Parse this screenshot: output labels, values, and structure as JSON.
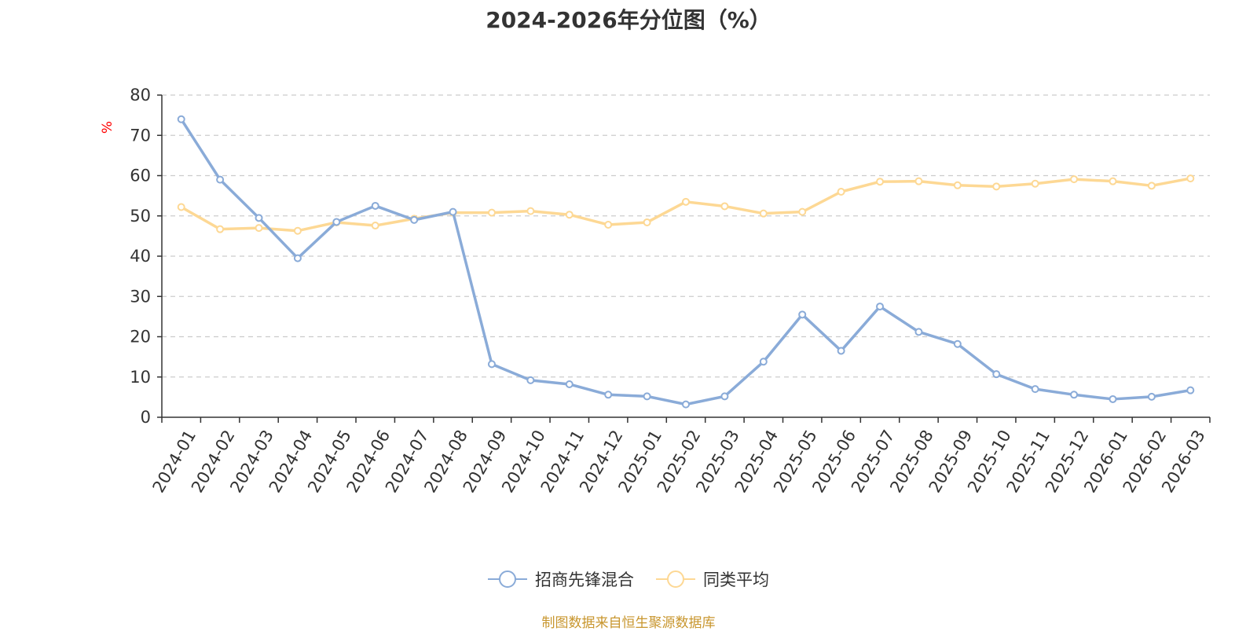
{
  "colors": {
    "series1": "#8aabd8",
    "series2": "#fdd894",
    "axis": "#333333",
    "grid": "#cccccc",
    "unit": "#ff0000",
    "source": "#c8962e",
    "text": "#333333"
  },
  "source_note": "制图数据来自恒生聚源数据库",
  "chart_data": {
    "type": "line",
    "title": "2024-2026年分位图（%）",
    "ylabel": "%",
    "ylim": [
      0,
      80
    ],
    "yticks": [
      0,
      10,
      20,
      30,
      40,
      50,
      60,
      70,
      80
    ],
    "grid": true,
    "grid_style": "dashed",
    "legend_position": "bottom",
    "categories": [
      "2024-01",
      "2024-02",
      "2024-03",
      "2024-04",
      "2024-05",
      "2024-06",
      "2024-07",
      "2024-08",
      "2024-09",
      "2024-10",
      "2024-11",
      "2024-12",
      "2025-01",
      "2025-02",
      "2025-03",
      "2025-04",
      "2025-05",
      "2025-06",
      "2025-07",
      "2025-08",
      "2025-09",
      "2025-10",
      "2025-11",
      "2025-12",
      "2026-01",
      "2026-02",
      "2026-03"
    ],
    "series": [
      {
        "name": "招商先锋混合",
        "color": "#8aabd8",
        "values": [
          74,
          59,
          49.5,
          39.5,
          48.5,
          52.5,
          49,
          51,
          13.2,
          9.2,
          8.2,
          5.6,
          5.2,
          3.2,
          5.2,
          13.8,
          25.5,
          16.5,
          27.5,
          21.2,
          18.2,
          10.7,
          7.0,
          5.6,
          4.5,
          5.1,
          6.7
        ]
      },
      {
        "name": "同类平均",
        "color": "#fdd894",
        "values": [
          52.2,
          46.7,
          47.0,
          46.3,
          48.4,
          47.6,
          49.3,
          50.8,
          50.8,
          51.2,
          50.3,
          47.8,
          48.4,
          53.5,
          52.4,
          50.6,
          51.0,
          56.0,
          58.5,
          58.6,
          57.6,
          57.3,
          58.0,
          59.1,
          58.6,
          57.5,
          59.3
        ]
      }
    ]
  }
}
